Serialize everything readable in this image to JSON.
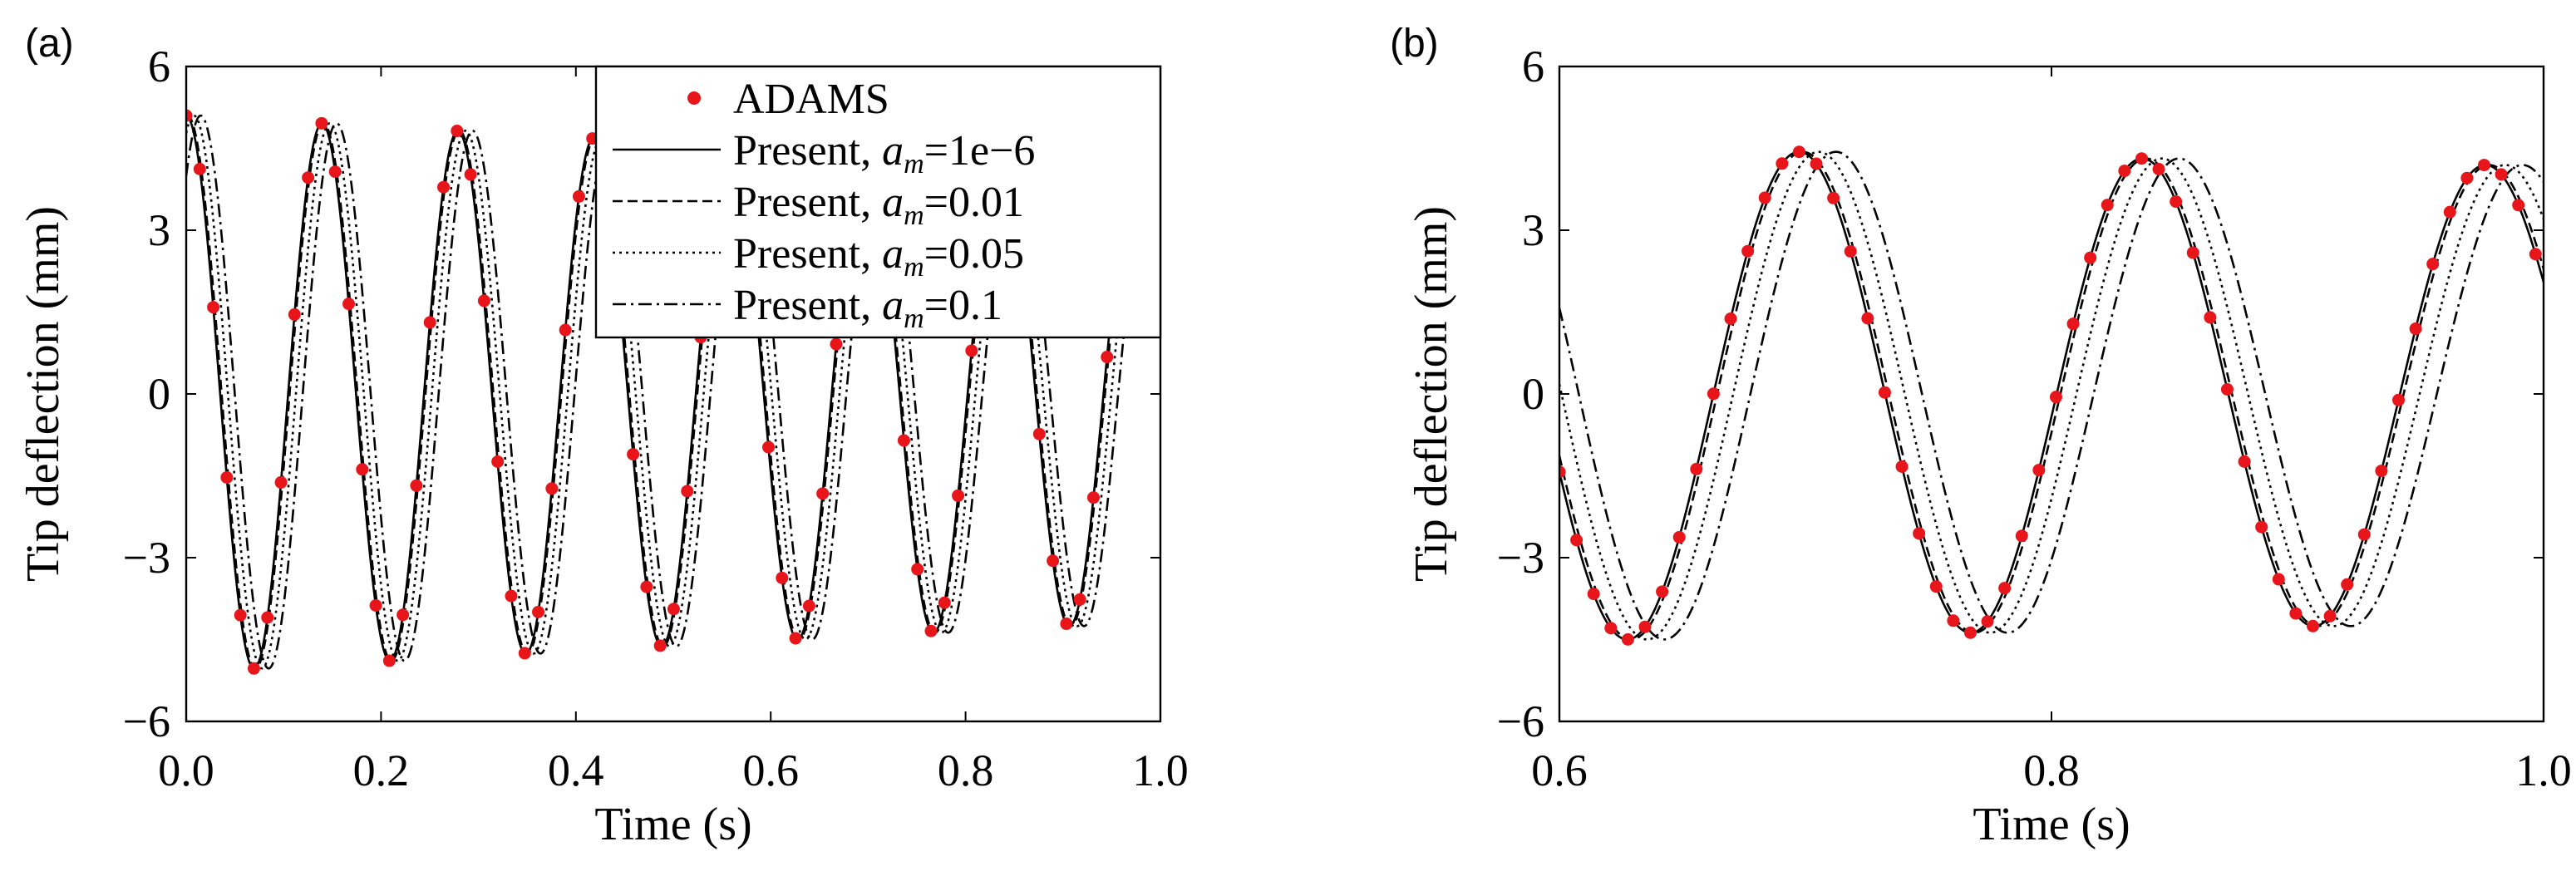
{
  "chart_data": [
    {
      "panel_label": "(a)",
      "type": "line",
      "xlabel": "Time (s)",
      "ylabel": "Tip deflection (mm)",
      "xlim": [
        0.0,
        1.0
      ],
      "ylim": [
        -6,
        6
      ],
      "x_ticks": [
        0.0,
        0.2,
        0.4,
        0.6,
        0.8,
        1.0
      ],
      "x_tick_labels": [
        "0.0",
        "0.2",
        "0.4",
        "0.6",
        "0.8",
        "1.0"
      ],
      "y_ticks": [
        -6,
        -3,
        0,
        3,
        6
      ],
      "y_tick_labels": [
        "−6",
        "−3",
        "0",
        "3",
        "6"
      ],
      "grid": false,
      "legend_placement": "top-right",
      "legend": [
        {
          "label": "ADAMS",
          "style": "markers",
          "sub": ""
        },
        {
          "label": "Present, ",
          "math": "a",
          "sub": "m",
          "value": "=1e−6",
          "style": "solid"
        },
        {
          "label": "Present, ",
          "math": "a",
          "sub": "m",
          "value": "=0.01",
          "style": "dashed"
        },
        {
          "label": "Present, ",
          "math": "a",
          "sub": "m",
          "value": "=0.05",
          "style": "dotted"
        },
        {
          "label": "Present, ",
          "math": "a",
          "sub": "m",
          "value": "=0.1",
          "style": "dashdot"
        }
      ]
    },
    {
      "panel_label": "(b)",
      "type": "line",
      "xlabel": "Time (s)",
      "ylabel": "Tip deflection (mm)",
      "xlim": [
        0.6,
        1.0
      ],
      "ylim": [
        -6,
        6
      ],
      "x_ticks": [
        0.6,
        0.8,
        1.0
      ],
      "x_tick_labels": [
        "0.6",
        "0.8",
        "1.0"
      ],
      "y_ticks": [
        -6,
        -3,
        0,
        3,
        6
      ],
      "y_tick_labels": [
        "−6",
        "−3",
        "0",
        "3",
        "6"
      ],
      "grid": false
    }
  ],
  "model": {
    "initial_amplitude_mm": 5.1,
    "period_s": 0.1395,
    "decay_per_s": 0.2,
    "series": [
      {
        "name": "ADAMS",
        "style": "markers",
        "delay_s": 0.0,
        "marker_spacing_s_a": 0.0139,
        "marker_spacing_s_b": 0.00696
      },
      {
        "name": "Present, a_m=1e-6",
        "style": "solid",
        "delay_s": 0.0
      },
      {
        "name": "Present, a_m=0.01",
        "style": "dashed",
        "delay_s": 0.0015
      },
      {
        "name": "Present, a_m=0.05",
        "style": "dotted",
        "delay_s": 0.008
      },
      {
        "name": "Present, a_m=0.1",
        "style": "dashdot",
        "delay_s": 0.015
      }
    ],
    "colors": {
      "markers": "#e8161b",
      "lines": "#000000"
    }
  }
}
